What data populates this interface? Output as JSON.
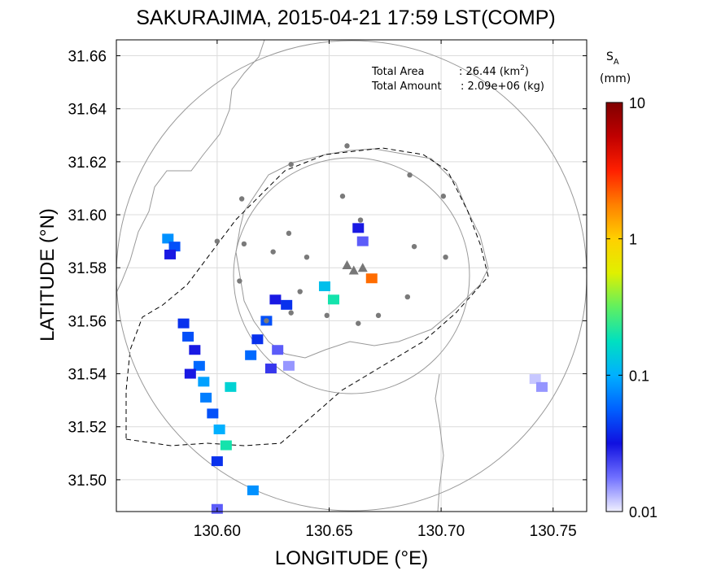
{
  "chart_data": {
    "type": "heatmap",
    "title": "SAKURAJIMA, 2015-04-21 17:59 LST(COMP)",
    "xlabel": "LONGITUDE (°E)",
    "ylabel": "LATITUDE (°N)",
    "xlim": [
      130.555,
      130.765
    ],
    "ylim": [
      31.488,
      31.666
    ],
    "xticks": [
      "130.60",
      "130.65",
      "130.70",
      "130.75"
    ],
    "xtick_values": [
      130.6,
      130.65,
      130.7,
      130.75
    ],
    "yticks": [
      "31.66",
      "31.64",
      "31.62",
      "31.60",
      "31.58",
      "31.56",
      "31.54",
      "31.52",
      "31.50"
    ],
    "ytick_values": [
      31.66,
      31.64,
      31.62,
      31.6,
      31.58,
      31.56,
      31.54,
      31.52,
      31.5
    ],
    "grid": true,
    "info": {
      "area_label": "Total Area",
      "area_value": ": 26.44 (km",
      "area_sup": "2",
      "area_close": ")",
      "amount_label": "Total Amount",
      "amount_value": ": 2.09e+06 (kg)"
    },
    "colorbar": {
      "title": "S",
      "title_sub": "A",
      "unit": "(mm)",
      "scale": "log",
      "range": [
        0.01,
        10
      ],
      "ticks": [
        "10",
        "1",
        "0.1",
        "0.01"
      ],
      "tick_values": [
        10,
        1,
        0.1,
        0.01
      ],
      "colors": [
        "#f0f0ff",
        "#7070ff",
        "#1010e0",
        "#0060ff",
        "#00b0ff",
        "#00e0c0",
        "#60f060",
        "#e0f000",
        "#ffd000",
        "#ff8000",
        "#ff2000",
        "#c00000",
        "#800000"
      ]
    },
    "summit_markers": [
      {
        "lon": 130.658,
        "lat": 31.581
      },
      {
        "lon": 130.661,
        "lat": 31.579
      },
      {
        "lon": 130.665,
        "lat": 31.58
      }
    ],
    "stations": [
      {
        "lon": 130.633,
        "lat": 31.619
      },
      {
        "lon": 130.658,
        "lat": 31.626
      },
      {
        "lon": 130.686,
        "lat": 31.615
      },
      {
        "lon": 130.611,
        "lat": 31.606
      },
      {
        "lon": 130.656,
        "lat": 31.607
      },
      {
        "lon": 130.664,
        "lat": 31.598
      },
      {
        "lon": 130.701,
        "lat": 31.607
      },
      {
        "lon": 130.6,
        "lat": 31.59
      },
      {
        "lon": 130.612,
        "lat": 31.589
      },
      {
        "lon": 130.632,
        "lat": 31.593
      },
      {
        "lon": 130.625,
        "lat": 31.586
      },
      {
        "lon": 130.64,
        "lat": 31.584
      },
      {
        "lon": 130.688,
        "lat": 31.588
      },
      {
        "lon": 130.702,
        "lat": 31.584
      },
      {
        "lon": 130.61,
        "lat": 31.575
      },
      {
        "lon": 130.637,
        "lat": 31.571
      },
      {
        "lon": 130.685,
        "lat": 31.569
      },
      {
        "lon": 130.649,
        "lat": 31.562
      },
      {
        "lon": 130.672,
        "lat": 31.562
      },
      {
        "lon": 130.633,
        "lat": 31.563
      },
      {
        "lon": 130.663,
        "lat": 31.559
      },
      {
        "lon": 130.622,
        "lat": 31.56
      }
    ],
    "ash_cells": [
      {
        "lon": 130.578,
        "lat": 31.591,
        "value": 0.08
      },
      {
        "lon": 130.581,
        "lat": 31.588,
        "value": 0.05
      },
      {
        "lon": 130.579,
        "lat": 31.585,
        "value": 0.03
      },
      {
        "lon": 130.585,
        "lat": 31.559,
        "value": 0.04
      },
      {
        "lon": 130.587,
        "lat": 31.554,
        "value": 0.05
      },
      {
        "lon": 130.59,
        "lat": 31.549,
        "value": 0.03
      },
      {
        "lon": 130.592,
        "lat": 31.543,
        "value": 0.06
      },
      {
        "lon": 130.594,
        "lat": 31.537,
        "value": 0.09
      },
      {
        "lon": 130.595,
        "lat": 31.531,
        "value": 0.07
      },
      {
        "lon": 130.598,
        "lat": 31.525,
        "value": 0.05
      },
      {
        "lon": 130.601,
        "lat": 31.519,
        "value": 0.1
      },
      {
        "lon": 130.604,
        "lat": 31.513,
        "value": 0.2
      },
      {
        "lon": 130.6,
        "lat": 31.507,
        "value": 0.04
      },
      {
        "lon": 130.606,
        "lat": 31.535,
        "value": 0.15
      },
      {
        "lon": 130.588,
        "lat": 31.54,
        "value": 0.03
      },
      {
        "lon": 130.616,
        "lat": 31.496,
        "value": 0.08
      },
      {
        "lon": 130.6,
        "lat": 31.489,
        "value": 0.02
      },
      {
        "lon": 130.626,
        "lat": 31.568,
        "value": 0.03
      },
      {
        "lon": 130.631,
        "lat": 31.566,
        "value": 0.04
      },
      {
        "lon": 130.622,
        "lat": 31.56,
        "value": 0.05
      },
      {
        "lon": 130.618,
        "lat": 31.553,
        "value": 0.04
      },
      {
        "lon": 130.615,
        "lat": 31.547,
        "value": 0.06
      },
      {
        "lon": 130.627,
        "lat": 31.549,
        "value": 0.02
      },
      {
        "lon": 130.632,
        "lat": 31.543,
        "value": 0.015
      },
      {
        "lon": 130.624,
        "lat": 31.542,
        "value": 0.025
      },
      {
        "lon": 130.663,
        "lat": 31.595,
        "value": 0.03
      },
      {
        "lon": 130.665,
        "lat": 31.59,
        "value": 0.02
      },
      {
        "lon": 130.669,
        "lat": 31.576,
        "value": 2.0
      },
      {
        "lon": 130.648,
        "lat": 31.573,
        "value": 0.12
      },
      {
        "lon": 130.652,
        "lat": 31.568,
        "value": 0.2
      },
      {
        "lon": 130.742,
        "lat": 31.538,
        "value": 0.012
      },
      {
        "lon": 130.745,
        "lat": 31.535,
        "value": 0.015
      }
    ]
  }
}
